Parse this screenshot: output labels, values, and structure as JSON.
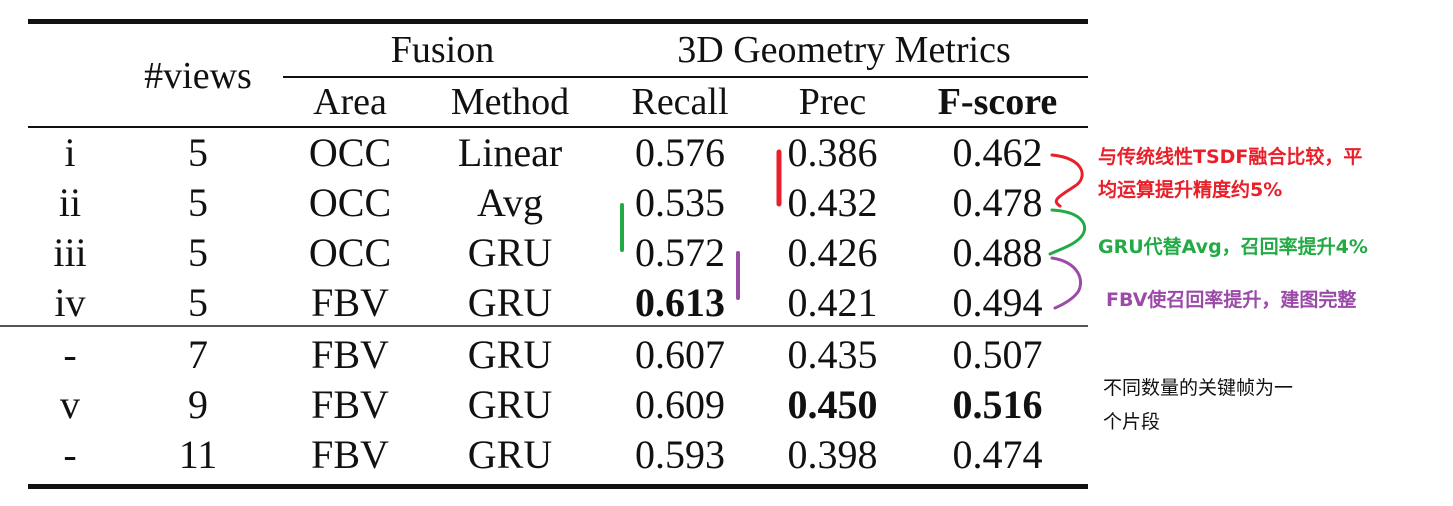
{
  "table": {
    "headers": {
      "views": "#views",
      "fusion": "Fusion",
      "geometry": "3D Geometry Metrics",
      "area": "Area",
      "method": "Method",
      "recall": "Recall",
      "prec": "Prec",
      "fscore": "F-score"
    },
    "rows": [
      {
        "id": "i",
        "views": "5",
        "area": "OCC",
        "method": "Linear",
        "recall": "0.576",
        "prec": "0.386",
        "fscore": "0.462"
      },
      {
        "id": "ii",
        "views": "5",
        "area": "OCC",
        "method": "Avg",
        "recall": "0.535",
        "prec": "0.432",
        "fscore": "0.478"
      },
      {
        "id": "iii",
        "views": "5",
        "area": "OCC",
        "method": "GRU",
        "recall": "0.572",
        "prec": "0.426",
        "fscore": "0.488"
      },
      {
        "id": "iv",
        "views": "5",
        "area": "FBV",
        "method": "GRU",
        "recall": "0.613",
        "prec": "0.421",
        "fscore": "0.494"
      },
      {
        "id": "-",
        "views": "7",
        "area": "FBV",
        "method": "GRU",
        "recall": "0.607",
        "prec": "0.435",
        "fscore": "0.507"
      },
      {
        "id": "v",
        "views": "9",
        "area": "FBV",
        "method": "GRU",
        "recall": "0.609",
        "prec": "0.450",
        "fscore": "0.516"
      },
      {
        "id": "-",
        "views": "11",
        "area": "FBV",
        "method": "GRU",
        "recall": "0.593",
        "prec": "0.398",
        "fscore": "0.474"
      }
    ]
  },
  "annotations": {
    "red": {
      "line1": "与传统线性TSDF融合比较，平",
      "line2": "均运算提升精度约5%",
      "color": "#e8202a"
    },
    "green": {
      "text": "GRU代替Avg，召回率提升4%",
      "color": "#22aa44"
    },
    "purple": {
      "text": "FBV使召回率提升，建图完整",
      "color": "#9b4aa8"
    },
    "black": {
      "line1": "不同数量的关键帧为一",
      "line2": "个片段"
    }
  }
}
